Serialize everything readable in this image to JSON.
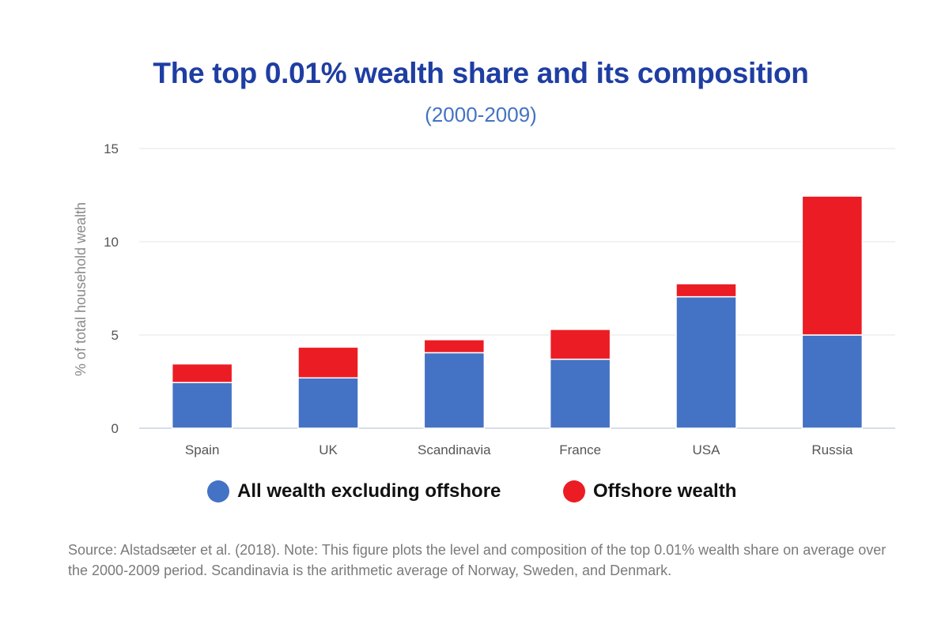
{
  "chart_data": {
    "type": "bar",
    "stacked": true,
    "title": "The top 0.01% wealth share and its composition",
    "subtitle": "(2000-2009)",
    "ylabel": "% of total household wealth",
    "xlabel": "",
    "ylim": [
      0,
      15
    ],
    "yticks": [
      0,
      5,
      10,
      15
    ],
    "grid": true,
    "legend_position": "bottom",
    "categories": [
      "Spain",
      "UK",
      "Scandinavia",
      "France",
      "USA",
      "Russia"
    ],
    "series": [
      {
        "name": "All wealth excluding offshore",
        "color": "#4472c4",
        "values": [
          2.45,
          2.7,
          4.05,
          3.7,
          7.05,
          5.0
        ]
      },
      {
        "name": "Offshore wealth",
        "color": "#ec1c24",
        "values": [
          1.0,
          1.65,
          0.7,
          1.6,
          0.7,
          7.45
        ]
      }
    ]
  },
  "source_note": "Source: Alstadsæter et al. (2018). Note: This figure plots the level and composition of the top 0.01% wealth share on average over the 2000-2009 period. Scandinavia is the arithmetic average of Norway, Sweden, and Denmark."
}
